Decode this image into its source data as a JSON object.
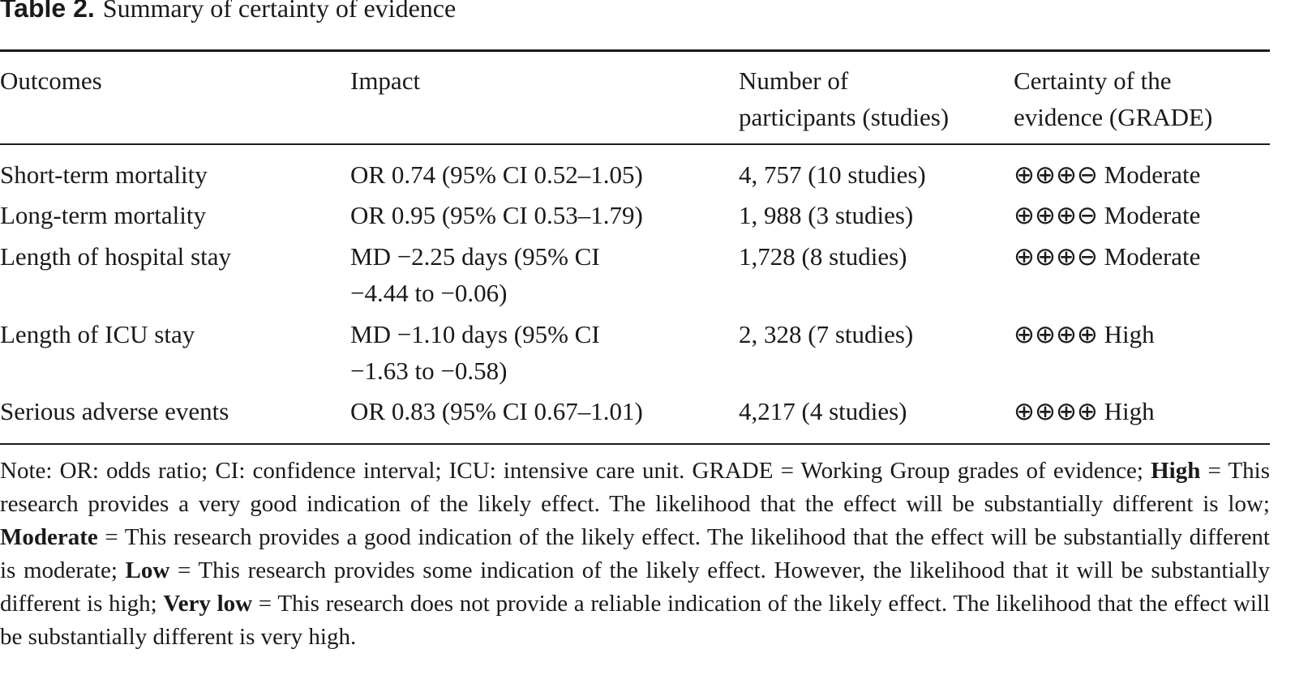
{
  "caption": {
    "label": "Table 2.",
    "title": "Summary of certainty of evidence"
  },
  "header": {
    "outcomes": "Outcomes",
    "impact": "Impact",
    "participants_line1": "Number of",
    "participants_line2": "participants (studies)",
    "certainty_line1": "Certainty of the",
    "certainty_line2": "evidence (GRADE)"
  },
  "rows": [
    {
      "outcome": "Short-term mortality",
      "impact_line1": "OR 0.74 (95% CI 0.52–1.05)",
      "impact_line2": "",
      "participants": "4, 757 (10 studies)",
      "certainty": "⊕⊕⊕⊖ Moderate"
    },
    {
      "outcome": "Long-term mortality",
      "impact_line1": "OR 0.95 (95% CI 0.53–1.79)",
      "impact_line2": "",
      "participants": "1, 988 (3 studies)",
      "certainty": "⊕⊕⊕⊖ Moderate"
    },
    {
      "outcome": "Length of hospital stay",
      "impact_line1": "MD −2.25 days (95% CI",
      "impact_line2": "−4.44 to −0.06)",
      "participants": "1,728 (8 studies)",
      "certainty": "⊕⊕⊕⊖ Moderate"
    },
    {
      "outcome": "Length of ICU stay",
      "impact_line1": "MD −1.10 days (95% CI",
      "impact_line2": "−1.63 to −0.58)",
      "participants": "2, 328 (7 studies)",
      "certainty": "⊕⊕⊕⊕ High"
    },
    {
      "outcome": "Serious adverse events",
      "impact_line1": "OR 0.83 (95% CI 0.67–1.01)",
      "impact_line2": "",
      "participants": "4,217 (4 studies)",
      "certainty": "⊕⊕⊕⊕ High"
    }
  ],
  "note": {
    "part1": "Note: OR: odds ratio; CI: confidence interval; ICU: intensive care unit. GRADE = Working Group grades of evidence; ",
    "high_label": "High",
    "part2": " = This research provides a very good indication of the likely effect. The likelihood that the effect will be substantially different is low; ",
    "moderate_label": "Moderate",
    "part3": " = This research provides a good indication of the likely effect. The likelihood that the effect will be substantially different is moderate; ",
    "low_label": "Low",
    "part4": " = This research provides some indication of the likely effect. However, the likelihood that it will be substantially different is high; ",
    "verylow_label": "Very low",
    "part5": " = This research does not provide a reliable indication of the likely effect. The likelihood that the effect will be substantially different is very high."
  }
}
